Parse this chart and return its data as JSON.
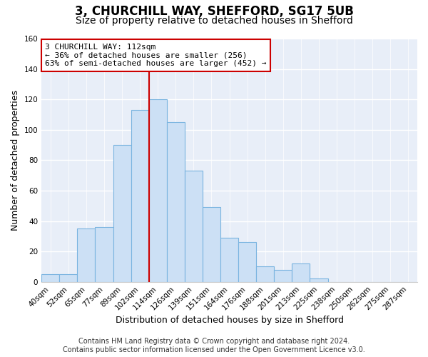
{
  "title": "3, CHURCHILL WAY, SHEFFORD, SG17 5UB",
  "subtitle": "Size of property relative to detached houses in Shefford",
  "xlabel": "Distribution of detached houses by size in Shefford",
  "ylabel": "Number of detached properties",
  "bin_labels": [
    "40sqm",
    "52sqm",
    "65sqm",
    "77sqm",
    "89sqm",
    "102sqm",
    "114sqm",
    "126sqm",
    "139sqm",
    "151sqm",
    "164sqm",
    "176sqm",
    "188sqm",
    "201sqm",
    "213sqm",
    "225sqm",
    "238sqm",
    "250sqm",
    "262sqm",
    "275sqm",
    "287sqm"
  ],
  "bin_values": [
    5,
    5,
    35,
    36,
    90,
    113,
    120,
    105,
    73,
    49,
    29,
    26,
    10,
    8,
    12,
    2,
    0,
    0,
    0,
    0,
    0
  ],
  "bar_color": "#cce0f5",
  "bar_edge_color": "#7ab4e0",
  "vline_color": "#cc0000",
  "ylim": [
    0,
    160
  ],
  "yticks": [
    0,
    20,
    40,
    60,
    80,
    100,
    120,
    140,
    160
  ],
  "annotation_title": "3 CHURCHILL WAY: 112sqm",
  "annotation_line1": "← 36% of detached houses are smaller (256)",
  "annotation_line2": "63% of semi-detached houses are larger (452) →",
  "annotation_box_color": "#ffffff",
  "annotation_box_edge": "#cc0000",
  "footer1": "Contains HM Land Registry data © Crown copyright and database right 2024.",
  "footer2": "Contains public sector information licensed under the Open Government Licence v3.0.",
  "figure_bg": "#ffffff",
  "plot_bg": "#e8eef8",
  "grid_color": "#ffffff",
  "title_fontsize": 12,
  "subtitle_fontsize": 10,
  "label_fontsize": 9,
  "tick_fontsize": 7.5,
  "annotation_fontsize": 8,
  "footer_fontsize": 7,
  "vline_x_index": 5.5
}
